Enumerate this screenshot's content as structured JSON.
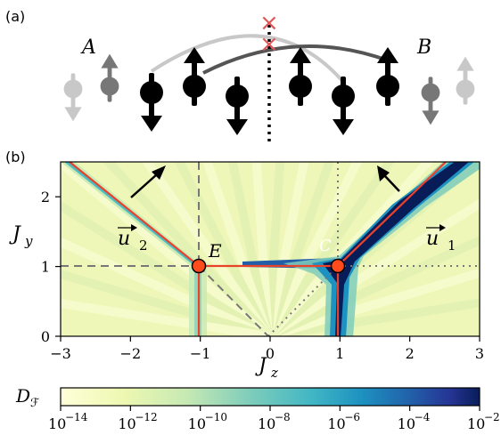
{
  "panel_a": {
    "label": "(a)",
    "site_a": "A",
    "site_b": "B",
    "cross_marks": [
      "×",
      "×"
    ]
  },
  "panel_b": {
    "label": "(b)",
    "vector_u1": "u",
    "vector_u1_sub": "1",
    "vector_u2": "u",
    "vector_u2_sub": "2",
    "point_e": "E",
    "point_c": "C",
    "colorbar_label": "D",
    "colorbar_label_sub": "ℱ",
    "colorbar_ticks": [
      {
        "base": "10",
        "exp": "−14"
      },
      {
        "base": "10",
        "exp": "−12"
      },
      {
        "base": "10",
        "exp": "−10"
      },
      {
        "base": "10",
        "exp": "−8"
      },
      {
        "base": "10",
        "exp": "−6"
      },
      {
        "base": "10",
        "exp": "−4"
      },
      {
        "base": "10",
        "exp": "−2"
      }
    ]
  },
  "colors": {
    "low": "#ffffd9",
    "mid": "#41b6c4",
    "high": "#081d58",
    "curve": "#e8422b",
    "marker": "#ff4a1c",
    "cross": "#e05555"
  },
  "chart_data": {
    "type": "heatmap",
    "xlabel": "J_z",
    "ylabel": "J_y",
    "xlim": [
      -3,
      3
    ],
    "ylim": [
      0,
      2.5
    ],
    "xticks": [
      "−3",
      "−2",
      "−1",
      "0",
      "1",
      "2",
      "3"
    ],
    "yticks": [
      "0",
      "1",
      "2"
    ],
    "colorbar": {
      "label": "D_F",
      "scale": "log",
      "range": [
        1e-14,
        0.01
      ]
    },
    "points": [
      {
        "name": "E",
        "x": -1,
        "y": 1
      },
      {
        "name": "C",
        "x": 1,
        "y": 1
      }
    ],
    "grid": false
  }
}
